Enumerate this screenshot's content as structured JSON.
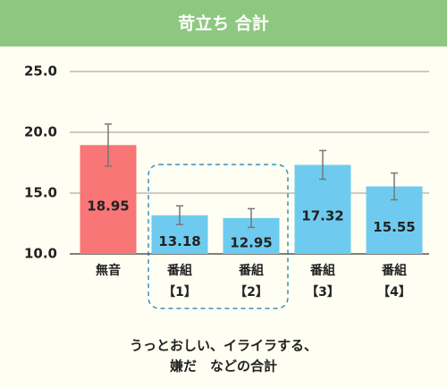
{
  "chart_data": {
    "type": "bar",
    "title": "苛立ち 合計",
    "categories": [
      [
        "無音"
      ],
      [
        "番組",
        "【1】"
      ],
      [
        "番組",
        "【2】"
      ],
      [
        "番組",
        "【3】"
      ],
      [
        "番組",
        "【4】"
      ]
    ],
    "series": [
      {
        "values": [
          18.95,
          13.18,
          12.95,
          17.32,
          15.55
        ],
        "errors": [
          1.73,
          0.77,
          0.77,
          1.18,
          1.1
        ],
        "colors": [
          "#f87676",
          "#6ecbef",
          "#6ecbef",
          "#6ecbef",
          "#6ecbef"
        ]
      }
    ],
    "ylim": [
      10,
      25
    ],
    "yticks": [
      {
        "value": 10,
        "label": "10.0"
      },
      {
        "value": 15,
        "label": "15.0"
      },
      {
        "value": 20,
        "label": "20.0"
      },
      {
        "value": 25,
        "label": "25.0"
      }
    ],
    "grid": true,
    "annotation": [
      "うっとおしい、イライラする、",
      "嫌だ　などの合計"
    ]
  }
}
